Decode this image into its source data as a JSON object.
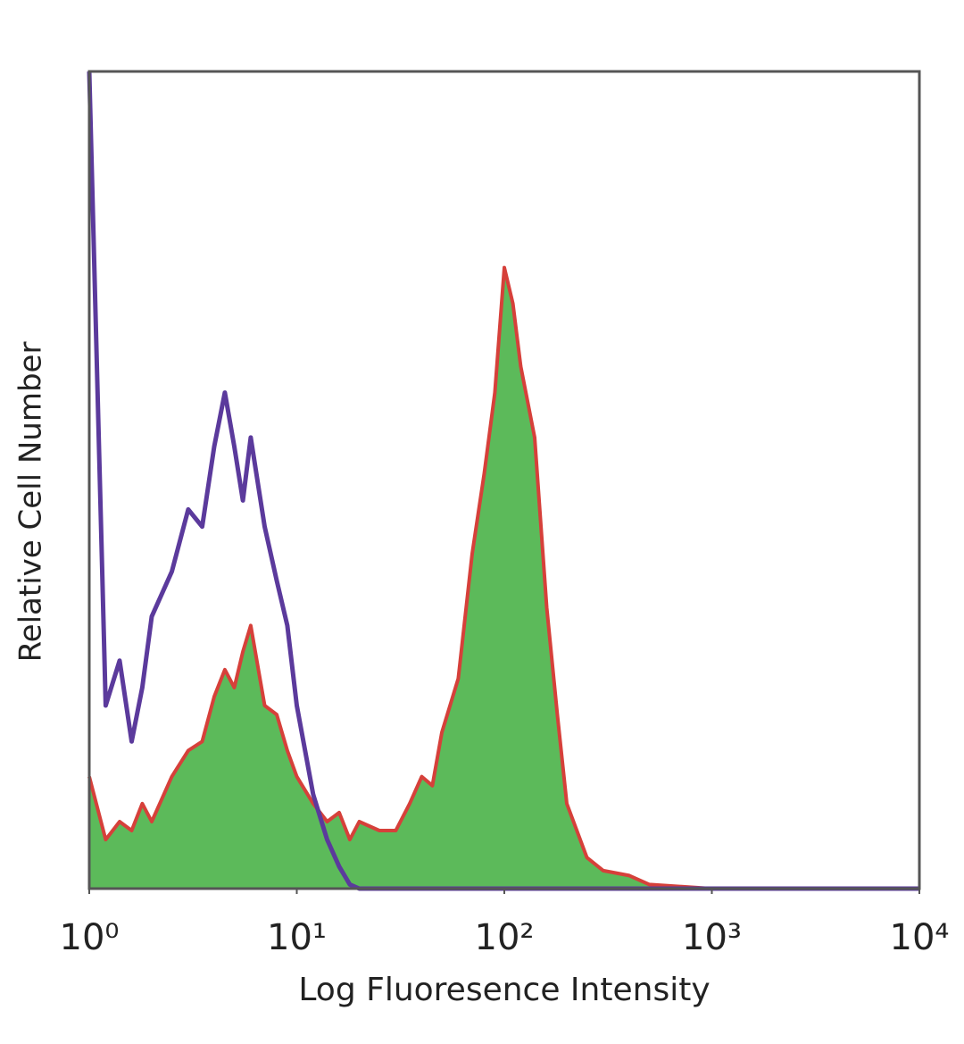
{
  "chart_data": {
    "type": "histogram-line",
    "x_label": "Log Fluoresence Intensity",
    "y_label": "Relative Cell Number",
    "xscale": "log",
    "xlim": [
      1,
      10000
    ],
    "xticks": [
      {
        "value": 1,
        "label": "10⁰"
      },
      {
        "value": 10,
        "label": "10¹"
      },
      {
        "value": 100,
        "label": "10²"
      },
      {
        "value": 1000,
        "label": "10³"
      },
      {
        "value": 10000,
        "label": "10⁴"
      }
    ],
    "ylim": [
      0,
      100
    ],
    "x": [
      1,
      1.2,
      1.4,
      1.6,
      1.8,
      2,
      2.5,
      3,
      3.5,
      4,
      4.5,
      5,
      5.5,
      6,
      7,
      8,
      9,
      10,
      12,
      14,
      16,
      18,
      20,
      25,
      30,
      35,
      40,
      45,
      50,
      60,
      70,
      80,
      90,
      100,
      110,
      120,
      140,
      160,
      180,
      200,
      250,
      300,
      400,
      500,
      1000,
      10000
    ],
    "series": [
      {
        "color": "#5cba5a",
        "edge_color": "#d6403a",
        "fill": true,
        "values": [
          13.7,
          6.0,
          8.2,
          7.1,
          10.4,
          8.2,
          13.7,
          16.9,
          18.0,
          23.5,
          26.8,
          24.6,
          29.0,
          32.2,
          22.4,
          21.3,
          16.9,
          13.7,
          10.4,
          8.2,
          9.3,
          6.0,
          8.2,
          7.1,
          7.1,
          10.4,
          13.7,
          12.6,
          19.1,
          25.7,
          41.0,
          50.8,
          60.7,
          76.0,
          71.6,
          63.9,
          55.2,
          34.4,
          21.3,
          10.4,
          3.8,
          2.2,
          1.6,
          0.5,
          0,
          0
        ]
      },
      {
        "color": "#5b3a9c",
        "fill": false,
        "values": [
          100,
          22.4,
          27.9,
          18.0,
          24.6,
          33.3,
          38.8,
          46.4,
          44.3,
          54.1,
          60.7,
          54.1,
          47.5,
          55.2,
          44.3,
          37.7,
          32.2,
          22.4,
          11.5,
          6.0,
          2.7,
          0.5,
          0,
          0,
          0,
          0,
          0,
          0,
          0,
          0,
          0,
          0,
          0,
          0,
          0,
          0,
          0,
          0,
          0,
          0,
          0,
          0,
          0,
          0,
          0,
          0
        ]
      }
    ]
  }
}
